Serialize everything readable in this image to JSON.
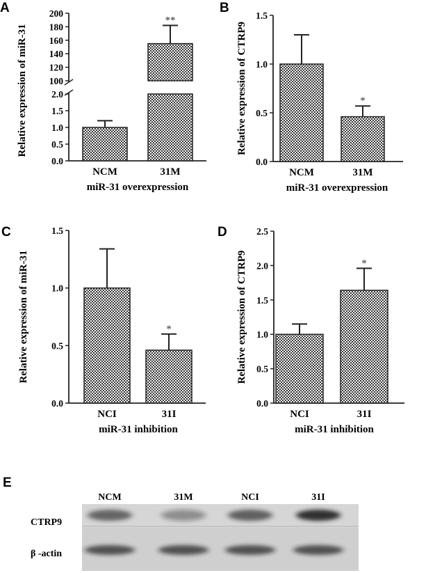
{
  "chart_data": [
    {
      "panel": "A",
      "type": "bar",
      "categories": [
        "NCM",
        "31M"
      ],
      "values": [
        1.0,
        155
      ],
      "error": [
        0.2,
        27
      ],
      "significance": [
        "",
        "**"
      ],
      "xlabel": "miR-31 overexpression",
      "ylabel": "Relative expression of miR-31",
      "axis_break": {
        "lower": [
          0,
          2.0
        ],
        "upper": [
          100,
          200
        ]
      },
      "yticks_lower": [
        "0.0",
        "0.5",
        "1.0",
        "1.5",
        "2.0"
      ],
      "yticks_upper": [
        "100",
        "120",
        "140",
        "160",
        "180",
        "200"
      ]
    },
    {
      "panel": "B",
      "type": "bar",
      "categories": [
        "NCM",
        "31M"
      ],
      "values": [
        1.0,
        0.46
      ],
      "error": [
        0.3,
        0.11
      ],
      "significance": [
        "",
        "*"
      ],
      "xlabel": "miR-31 overexpression",
      "ylabel": "Relative expression of CTRP9",
      "ylim": [
        0,
        1.5
      ],
      "yticks": [
        "0.0",
        "0.5",
        "1.0",
        "1.5"
      ]
    },
    {
      "panel": "C",
      "type": "bar",
      "categories": [
        "NCI",
        "31I"
      ],
      "values": [
        1.0,
        0.46
      ],
      "error": [
        0.34,
        0.14
      ],
      "significance": [
        "",
        "*"
      ],
      "xlabel": "miR-31 inhibition",
      "ylabel": "Relative expression of miR-31",
      "ylim": [
        0,
        1.5
      ],
      "yticks": [
        "0.0",
        "0.5",
        "1.0",
        "1.5"
      ]
    },
    {
      "panel": "D",
      "type": "bar",
      "categories": [
        "NCI",
        "31I"
      ],
      "values": [
        1.0,
        1.64
      ],
      "error": [
        0.15,
        0.32
      ],
      "significance": [
        "",
        "*"
      ],
      "xlabel": "miR-31 inhibition",
      "ylabel": "Relative expression of CTRP9",
      "ylim": [
        0,
        2.5
      ],
      "yticks": [
        "0.0",
        "0.5",
        "1.0",
        "1.5",
        "2.0",
        "2.5"
      ]
    }
  ],
  "blot": {
    "panel": "E",
    "lanes": [
      "NCM",
      "31M",
      "NCI",
      "31I"
    ],
    "rows": [
      {
        "label": "CTRP9",
        "intensity": [
          0.55,
          0.2,
          0.6,
          1.0
        ]
      },
      {
        "label": "β -actin",
        "intensity": [
          0.7,
          0.7,
          0.7,
          0.7
        ]
      }
    ]
  }
}
